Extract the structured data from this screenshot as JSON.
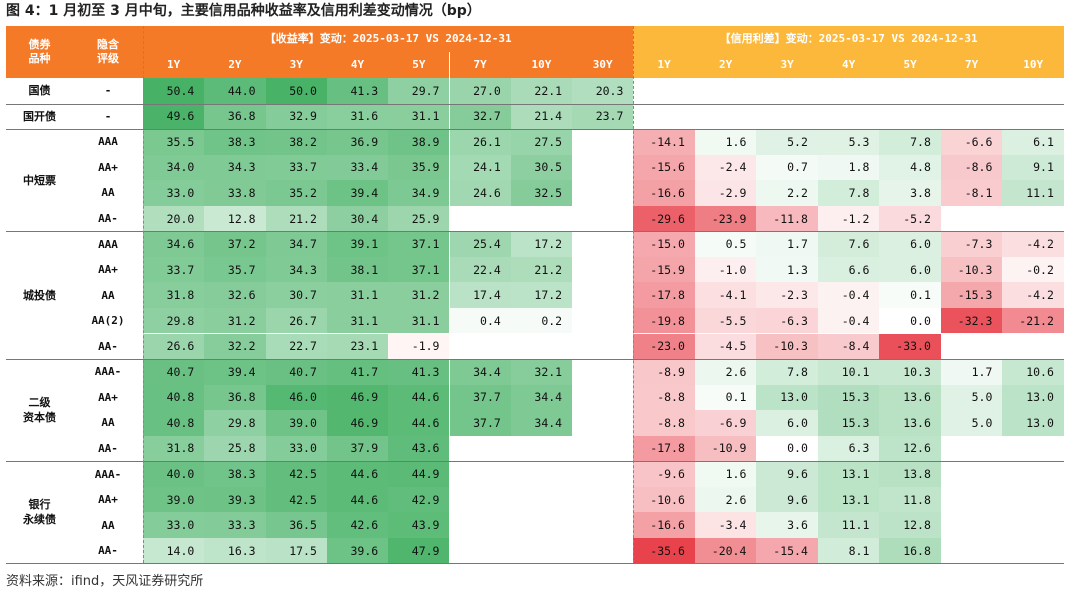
{
  "title": "图 4：1 月初至 3 月中旬，主要信用品种收益率及信用利差变动情况（bp）",
  "footer": "资料来源：ifind，天风证券研究所",
  "chart_data": {
    "type": "table",
    "colors": {
      "yield_header": "#F47A28",
      "spread_header": "#FBB83A",
      "positive": "#3DAE5E",
      "negative": "#E8414B"
    },
    "header": {
      "col1": "债券\n品种",
      "col2": "隐含\n评级",
      "yield_title": "【收益率】变动：2025-03-17 VS 2024-12-31",
      "spread_title": "【信用利差】变动：2025-03-17 VS 2024-12-31",
      "yield_tenors": [
        "1Y",
        "2Y",
        "3Y",
        "4Y",
        "5Y",
        "7Y",
        "10Y",
        "30Y"
      ],
      "spread_tenors": [
        "1Y",
        "2Y",
        "3Y",
        "4Y",
        "5Y",
        "7Y",
        "10Y"
      ]
    },
    "groups": [
      {
        "name": "国债",
        "rows": [
          {
            "rating": "-",
            "yield": [
              50.4,
              44.0,
              50.0,
              41.3,
              29.7,
              27.0,
              22.1,
              20.3
            ],
            "spread": [
              null,
              null,
              null,
              null,
              null,
              null,
              null
            ]
          }
        ]
      },
      {
        "name": "国开债",
        "rows": [
          {
            "rating": "-",
            "yield": [
              49.6,
              36.8,
              32.9,
              31.6,
              31.1,
              32.7,
              21.4,
              23.7
            ],
            "spread": [
              null,
              null,
              null,
              null,
              null,
              null,
              null
            ]
          }
        ]
      },
      {
        "name": "中短票",
        "rows": [
          {
            "rating": "AAA",
            "yield": [
              35.5,
              38.3,
              38.2,
              36.9,
              38.9,
              26.1,
              27.5,
              null
            ],
            "spread": [
              -14.1,
              1.6,
              5.2,
              5.3,
              7.8,
              -6.6,
              6.1
            ]
          },
          {
            "rating": "AA+",
            "yield": [
              34.0,
              34.3,
              33.7,
              33.4,
              35.9,
              24.1,
              30.5,
              null
            ],
            "spread": [
              -15.6,
              -2.4,
              0.7,
              1.8,
              4.8,
              -8.6,
              9.1
            ]
          },
          {
            "rating": "AA",
            "yield": [
              33.0,
              33.8,
              35.2,
              39.4,
              34.9,
              24.6,
              32.5,
              null
            ],
            "spread": [
              -16.6,
              -2.9,
              2.2,
              7.8,
              3.8,
              -8.1,
              11.1
            ]
          },
          {
            "rating": "AA-",
            "yield": [
              20.0,
              12.8,
              21.2,
              30.4,
              25.9,
              null,
              null,
              null
            ],
            "spread": [
              -29.6,
              -23.9,
              -11.8,
              -1.2,
              -5.2,
              null,
              null
            ]
          }
        ]
      },
      {
        "name": "城投债",
        "rows": [
          {
            "rating": "AAA",
            "yield": [
              34.6,
              37.2,
              34.7,
              39.1,
              37.1,
              25.4,
              17.2,
              null
            ],
            "spread": [
              -15.0,
              0.5,
              1.7,
              7.6,
              6.0,
              -7.3,
              -4.2
            ]
          },
          {
            "rating": "AA+",
            "yield": [
              33.7,
              35.7,
              34.3,
              38.1,
              37.1,
              22.4,
              21.2,
              null
            ],
            "spread": [
              -15.9,
              -1.0,
              1.3,
              6.6,
              6.0,
              -10.3,
              -0.2
            ]
          },
          {
            "rating": "AA",
            "yield": [
              31.8,
              32.6,
              30.7,
              31.1,
              31.2,
              17.4,
              17.2,
              null
            ],
            "spread": [
              -17.8,
              -4.1,
              -2.3,
              -0.4,
              0.1,
              -15.3,
              -4.2
            ]
          },
          {
            "rating": "AA(2)",
            "yield": [
              29.8,
              31.2,
              26.7,
              31.1,
              31.1,
              0.4,
              0.2,
              null
            ],
            "spread": [
              -19.8,
              -5.5,
              -6.3,
              -0.4,
              0.0,
              -32.3,
              -21.2
            ]
          },
          {
            "rating": "AA-",
            "yield": [
              26.6,
              32.2,
              22.7,
              23.1,
              -1.9,
              null,
              null,
              null
            ],
            "spread": [
              -23.0,
              -4.5,
              -10.3,
              -8.4,
              -33.0,
              null,
              null
            ]
          }
        ]
      },
      {
        "name": "二级\n资本债",
        "rows": [
          {
            "rating": "AAA-",
            "yield": [
              40.7,
              39.4,
              40.7,
              41.7,
              41.3,
              34.4,
              32.1,
              null
            ],
            "spread": [
              -8.9,
              2.6,
              7.8,
              10.1,
              10.3,
              1.7,
              10.6
            ]
          },
          {
            "rating": "AA+",
            "yield": [
              40.8,
              36.8,
              46.0,
              46.9,
              44.6,
              37.7,
              34.4,
              null
            ],
            "spread": [
              -8.8,
              0.1,
              13.0,
              15.3,
              13.6,
              5.0,
              13.0
            ]
          },
          {
            "rating": "AA",
            "yield": [
              40.8,
              29.8,
              39.0,
              46.9,
              44.6,
              37.7,
              34.4,
              null
            ],
            "spread": [
              -8.8,
              -6.9,
              6.0,
              15.3,
              13.6,
              5.0,
              13.0
            ]
          },
          {
            "rating": "AA-",
            "yield": [
              31.8,
              25.8,
              33.0,
              37.9,
              43.6,
              null,
              null,
              null
            ],
            "spread": [
              -17.8,
              -10.9,
              0.0,
              6.3,
              12.6,
              null,
              null
            ]
          }
        ]
      },
      {
        "name": "银行\n永续债",
        "rows": [
          {
            "rating": "AAA-",
            "yield": [
              40.0,
              38.3,
              42.5,
              44.6,
              44.9,
              null,
              null,
              null
            ],
            "spread": [
              -9.6,
              1.6,
              9.6,
              13.1,
              13.8,
              null,
              null
            ]
          },
          {
            "rating": "AA+",
            "yield": [
              39.0,
              39.3,
              42.5,
              44.6,
              42.9,
              null,
              null,
              null
            ],
            "spread": [
              -10.6,
              2.6,
              9.6,
              13.1,
              11.8,
              null,
              null
            ]
          },
          {
            "rating": "AA",
            "yield": [
              33.0,
              33.3,
              36.5,
              42.6,
              43.9,
              null,
              null,
              null
            ],
            "spread": [
              -16.6,
              -3.4,
              3.6,
              11.1,
              12.8,
              null,
              null
            ]
          },
          {
            "rating": "AA-",
            "yield": [
              14.0,
              16.3,
              17.5,
              39.6,
              47.9,
              null,
              null,
              null
            ],
            "spread": [
              -35.6,
              -20.4,
              -15.4,
              8.1,
              16.8,
              null,
              null
            ]
          }
        ]
      }
    ]
  }
}
